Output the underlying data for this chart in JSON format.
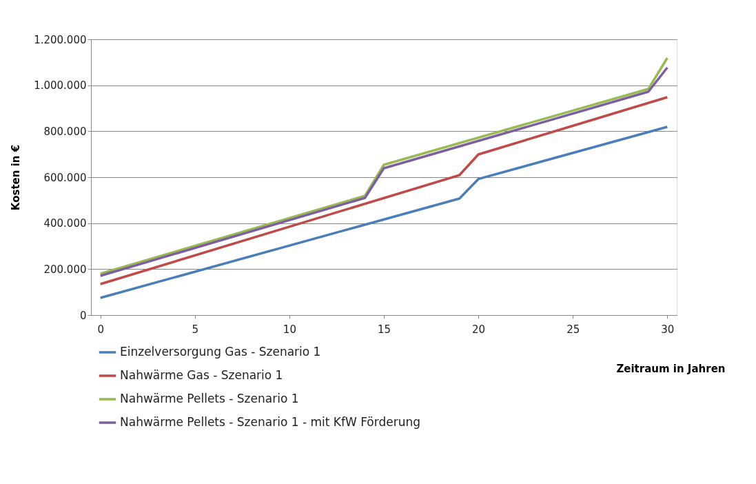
{
  "chart_data": {
    "type": "line",
    "xlabel": "Zeitraum in Jahren",
    "ylabel": "Kosten in €",
    "xlim": [
      -0.5,
      30.5
    ],
    "xticks": [
      0,
      5,
      10,
      15,
      20,
      25,
      30
    ],
    "ylim": [
      0,
      1200000
    ],
    "yticks": [
      {
        "value": 0,
        "label": "0"
      },
      {
        "value": 200000,
        "label": "200.000"
      },
      {
        "value": 400000,
        "label": "400.000"
      },
      {
        "value": 600000,
        "label": "600.000"
      },
      {
        "value": 800000,
        "label": "800.000"
      },
      {
        "value": 1000000,
        "label": "1.000.000"
      },
      {
        "value": 1200000,
        "label": "1.200.000"
      }
    ],
    "grid": "y",
    "legend": "bottom",
    "marker": "none",
    "line_style": "solid",
    "series": [
      {
        "name": "Einzelversorgung Gas - Szenario 1",
        "color": "#4a7ebb",
        "x": [
          0,
          19,
          20,
          30
        ],
        "values": [
          75000,
          507000,
          592000,
          819000
        ]
      },
      {
        "name": "Nahwärme Gas - Szenario 1",
        "color": "#be4b48",
        "x": [
          0,
          19,
          20,
          30
        ],
        "values": [
          135000,
          609000,
          699000,
          948000
        ]
      },
      {
        "name": "Nahwärme Pellets - Szenario 1",
        "color": "#98b954",
        "x": [
          0,
          14,
          15,
          29,
          30
        ],
        "values": [
          180000,
          519000,
          654000,
          984000,
          1119000
        ]
      },
      {
        "name": "Nahwärme Pellets - Szenario 1 - mit KfW Förderung",
        "color": "#7d5fa0",
        "x": [
          0,
          14,
          15,
          29,
          30
        ],
        "values": [
          171000,
          510000,
          639000,
          972000,
          1077000
        ]
      }
    ]
  }
}
